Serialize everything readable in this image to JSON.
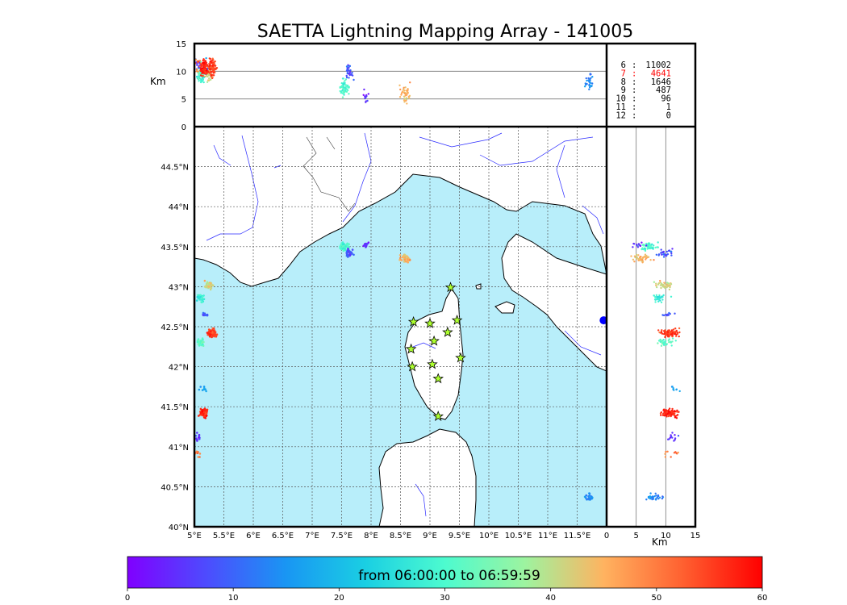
{
  "chart_data": {
    "type": "scatter",
    "title": "SAETTA Lightning Mapping Array - 141005",
    "map": {
      "lon_range": [
        5.0,
        12.0
      ],
      "lat_range": [
        40.0,
        45.0
      ],
      "lon_ticks": [
        5.0,
        5.5,
        6.0,
        6.5,
        7.0,
        7.5,
        8.0,
        8.5,
        9.0,
        9.5,
        10.0,
        10.5,
        11.0,
        11.5
      ],
      "lon_tick_labels": [
        "5°E",
        "5.5°E",
        "6°E",
        "6.5°E",
        "7°E",
        "7.5°E",
        "8°E",
        "8.5°E",
        "9°E",
        "9.5°E",
        "10°E",
        "10.5°E",
        "11°E",
        "11.5°E"
      ],
      "lat_ticks": [
        40.0,
        40.5,
        41.0,
        41.5,
        42.0,
        42.5,
        43.0,
        43.5,
        44.0,
        44.5
      ],
      "lat_tick_labels": [
        "40°N",
        "40.5°N",
        "41°N",
        "41.5°N",
        "42°N",
        "42.5°N",
        "43°N",
        "43.5°N",
        "44°N",
        "44.5°N"
      ],
      "grid": true,
      "sea_color": "#b8eefa",
      "land_color": "#ffffff",
      "river_color": "#2a2aff",
      "stations": [
        {
          "lon": 9.35,
          "lat": 42.99
        },
        {
          "lon": 8.72,
          "lat": 42.56
        },
        {
          "lon": 9.0,
          "lat": 42.54
        },
        {
          "lon": 9.46,
          "lat": 42.58
        },
        {
          "lon": 9.3,
          "lat": 42.43
        },
        {
          "lon": 9.07,
          "lat": 42.32
        },
        {
          "lon": 8.68,
          "lat": 42.22
        },
        {
          "lon": 9.52,
          "lat": 42.11
        },
        {
          "lon": 9.04,
          "lat": 42.03
        },
        {
          "lon": 8.7,
          "lat": 42.0
        },
        {
          "lon": 9.14,
          "lat": 41.85
        },
        {
          "lon": 9.14,
          "lat": 41.38
        }
      ]
    },
    "altitude_panels": {
      "label": "Km",
      "alt_range": [
        0,
        15
      ],
      "alt_ticks": [
        0,
        5,
        10,
        15
      ],
      "alt_tick_labels": [
        "0",
        "5",
        "10",
        "15"
      ],
      "reference_lines": [
        5,
        10
      ]
    },
    "clusters": [
      {
        "lon": 5.25,
        "lat": 43.03,
        "t": 42,
        "alt": 9.5,
        "n": 40
      },
      {
        "lon": 5.1,
        "lat": 42.85,
        "t": 28,
        "alt": 9,
        "n": 30
      },
      {
        "lon": 5.2,
        "lat": 42.65,
        "t": 8,
        "alt": 10.5,
        "n": 12
      },
      {
        "lon": 5.3,
        "lat": 42.42,
        "t": 55,
        "alt": 10.5,
        "n": 90
      },
      {
        "lon": 5.1,
        "lat": 42.3,
        "t": 32,
        "alt": 10,
        "n": 30
      },
      {
        "lon": 5.15,
        "lat": 41.72,
        "t": 18,
        "alt": 11,
        "n": 8
      },
      {
        "lon": 5.15,
        "lat": 41.42,
        "t": 57,
        "alt": 10.5,
        "n": 90
      },
      {
        "lon": 5.05,
        "lat": 41.12,
        "t": 4,
        "alt": 11,
        "n": 12
      },
      {
        "lon": 5.05,
        "lat": 40.92,
        "t": 50,
        "alt": 11,
        "n": 10
      },
      {
        "lon": 7.55,
        "lat": 43.5,
        "t": 30,
        "alt": 7,
        "n": 60
      },
      {
        "lon": 7.62,
        "lat": 43.42,
        "t": 8,
        "alt": 10,
        "n": 30
      },
      {
        "lon": 7.9,
        "lat": 43.52,
        "t": 4,
        "alt": 5.5,
        "n": 12
      },
      {
        "lon": 8.58,
        "lat": 43.35,
        "t": 45,
        "alt": 6,
        "n": 40
      },
      {
        "lon": 11.7,
        "lat": 40.38,
        "t": 14,
        "alt": 8,
        "n": 30
      }
    ],
    "peak_marker": {
      "lon": 11.95,
      "lat": 42.58
    },
    "stats": [
      {
        "label": "6",
        "value": "11002"
      },
      {
        "label": "7",
        "value": "4641"
      },
      {
        "label": "8",
        "value": "1646"
      },
      {
        "label": "9",
        "value": "487"
      },
      {
        "label": "10",
        "value": "96"
      },
      {
        "label": "11",
        "value": "1"
      },
      {
        "label": "12",
        "value": "0"
      }
    ],
    "stats_highlight_color": "#ff0000",
    "colorbar": {
      "range": [
        0,
        60
      ],
      "ticks": [
        0,
        10,
        20,
        30,
        40,
        50,
        60
      ],
      "tick_labels": [
        "0",
        "10",
        "20",
        "30",
        "40",
        "50",
        "60"
      ],
      "label": "from 06:00:00 to 06:59:59",
      "colormap": "rainbow"
    }
  }
}
